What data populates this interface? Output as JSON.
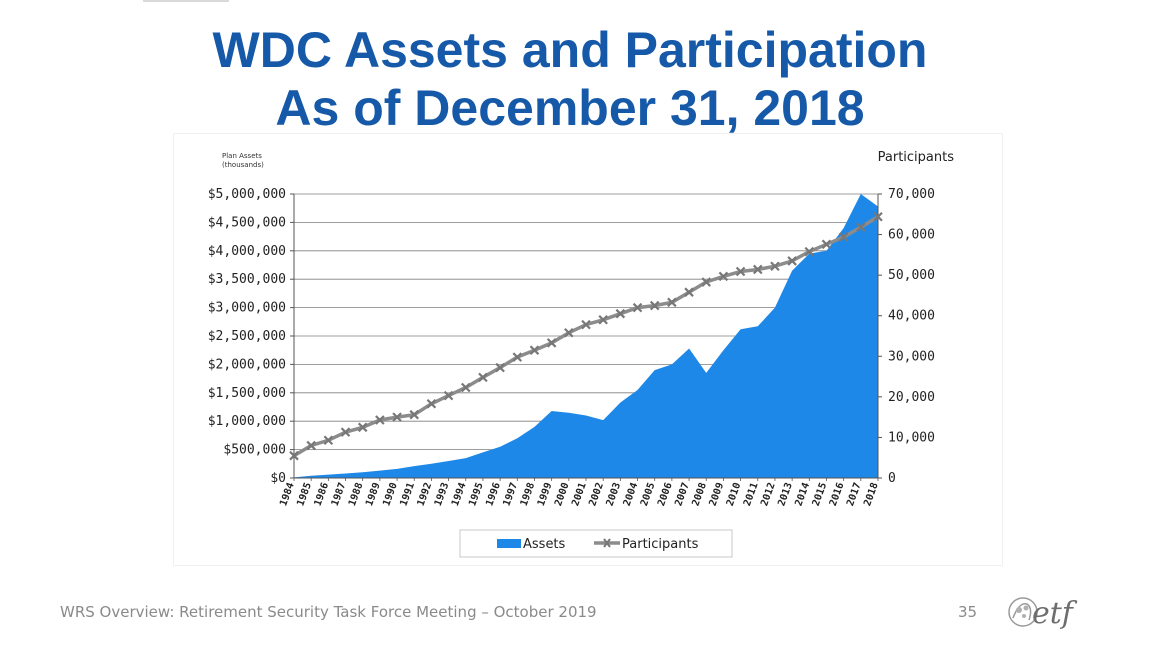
{
  "slide": {
    "title_line1": "WDC Assets and Participation",
    "title_line2": "As of December 31, 2018",
    "footer": "WRS Overview: Retirement Security Task Force Meeting – October 2019",
    "page_number": "35",
    "logo_text": "etf"
  },
  "colors": {
    "title": "#1659a8",
    "assets": "#1e88e8",
    "participants": "#8c8c8c"
  },
  "chart_data": {
    "type": "area",
    "x": [
      "1984",
      "1985",
      "1986",
      "1987",
      "1988",
      "1989",
      "1990",
      "1991",
      "1992",
      "1993",
      "1994",
      "1995",
      "1996",
      "1997",
      "1998",
      "1999",
      "2000",
      "2001",
      "2002",
      "2003",
      "2004",
      "2005",
      "2006",
      "2007",
      "2008",
      "2009",
      "2010",
      "2011",
      "2012",
      "2013",
      "2014",
      "2015",
      "2016",
      "2017",
      "2018"
    ],
    "series": [
      {
        "name": "Assets",
        "type": "area",
        "axis": "left",
        "values": [
          10000,
          40000,
          60000,
          80000,
          100000,
          130000,
          160000,
          210000,
          250000,
          300000,
          350000,
          450000,
          550000,
          700000,
          900000,
          1180000,
          1150000,
          1100000,
          1020000,
          1330000,
          1550000,
          1900000,
          2000000,
          2280000,
          1850000,
          2250000,
          2620000,
          2670000,
          3000000,
          3650000,
          3950000,
          4000000,
          4400000,
          5000000,
          4780000
        ]
      },
      {
        "name": "Participants",
        "type": "line",
        "axis": "right",
        "values": [
          5500,
          8000,
          9300,
          11300,
          12500,
          14300,
          15000,
          15600,
          18300,
          20300,
          22300,
          24800,
          27200,
          29800,
          31500,
          33300,
          35800,
          37800,
          39000,
          40500,
          42000,
          42500,
          43300,
          45800,
          48300,
          49700,
          50900,
          51400,
          52200,
          53500,
          55800,
          57600,
          59400,
          61800,
          64400
        ]
      }
    ],
    "left_axis": {
      "label": "Plan Assets (thousands)",
      "min": 0,
      "max": 5000000,
      "ticks": [
        "$0",
        "$500,000",
        "$1,000,000",
        "$1,500,000",
        "$2,000,000",
        "$2,500,000",
        "$3,000,000",
        "$3,500,000",
        "$4,000,000",
        "$4,500,000",
        "$5,000,000"
      ]
    },
    "right_axis": {
      "label": "Participants",
      "min": 0,
      "max": 70000,
      "ticks": [
        "0",
        "10,000",
        "20,000",
        "30,000",
        "40,000",
        "50,000",
        "60,000",
        "70,000"
      ]
    },
    "grid": true,
    "legend_position": "bottom",
    "legend": [
      "Assets",
      "Participants"
    ]
  }
}
